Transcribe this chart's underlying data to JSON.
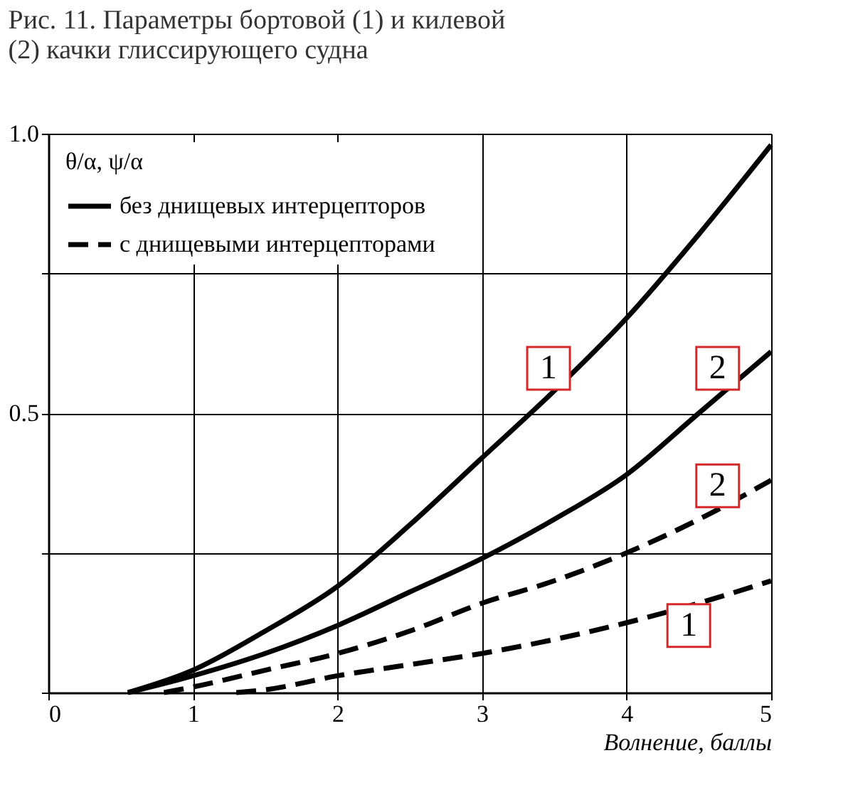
{
  "chart_data": {
    "type": "line",
    "title": [
      "Рис. 11. Параметры бортовой (1) и килевой",
      "(2) качки глиссирующего судна"
    ],
    "xlabel": "Волнение, баллы",
    "legend_title": "θ/α, ψ/α",
    "series": [
      {
        "name": "без днищевых интерцепторов",
        "color": "#000000",
        "line_style": "solid",
        "x": [
          0.55,
          1,
          1.5,
          2,
          2.5,
          3,
          3.5,
          4,
          4.5,
          5
        ],
        "values": [
          0,
          0.04,
          0.11,
          0.19,
          0.3,
          0.42,
          0.54,
          0.67,
          0.82,
          0.98
        ]
      },
      {
        "color": "#000000",
        "line_style": "solid",
        "x": [
          0.55,
          1,
          1.5,
          2,
          2.5,
          3,
          3.5,
          4,
          4.5,
          5
        ],
        "values": [
          0,
          0.03,
          0.07,
          0.12,
          0.18,
          0.24,
          0.31,
          0.39,
          0.5,
          0.61
        ]
      },
      {
        "name": "с днищевыми интерцепторами",
        "color": "#000000",
        "line_style": "dashed",
        "x": [
          0.8,
          1,
          1.5,
          2,
          2.5,
          3,
          3.5,
          4,
          4.5,
          5
        ],
        "values": [
          0,
          0.01,
          0.04,
          0.07,
          0.11,
          0.16,
          0.2,
          0.25,
          0.31,
          0.38
        ]
      },
      {
        "color": "#000000",
        "line_style": "dashed",
        "x": [
          1.3,
          1.5,
          2,
          2.5,
          3,
          3.5,
          4,
          4.5,
          5
        ],
        "values": [
          0,
          0.005,
          0.03,
          0.05,
          0.07,
          0.095,
          0.125,
          0.16,
          0.2
        ]
      }
    ],
    "xlim": [
      0,
      5
    ],
    "ylim": [
      0,
      1
    ],
    "xticks": [
      0,
      1,
      2,
      3,
      4,
      5
    ],
    "yticks": [
      {
        "value": 0,
        "label": null
      },
      {
        "value": 0.25,
        "label": null
      },
      {
        "value": 0.5,
        "label": "0.5"
      },
      {
        "value": 0.75,
        "label": null
      },
      {
        "value": 1,
        "label": "1.0"
      }
    ],
    "annotations": [
      {
        "text": "1",
        "x": 3.46,
        "y": 0.58
      },
      {
        "text": "2",
        "x": 4.63,
        "y": 0.58
      },
      {
        "text": "2",
        "x": 4.63,
        "y": 0.37
      },
      {
        "text": "1",
        "x": 4.43,
        "y": 0.12
      }
    ],
    "grid": true,
    "legend": "top left"
  }
}
